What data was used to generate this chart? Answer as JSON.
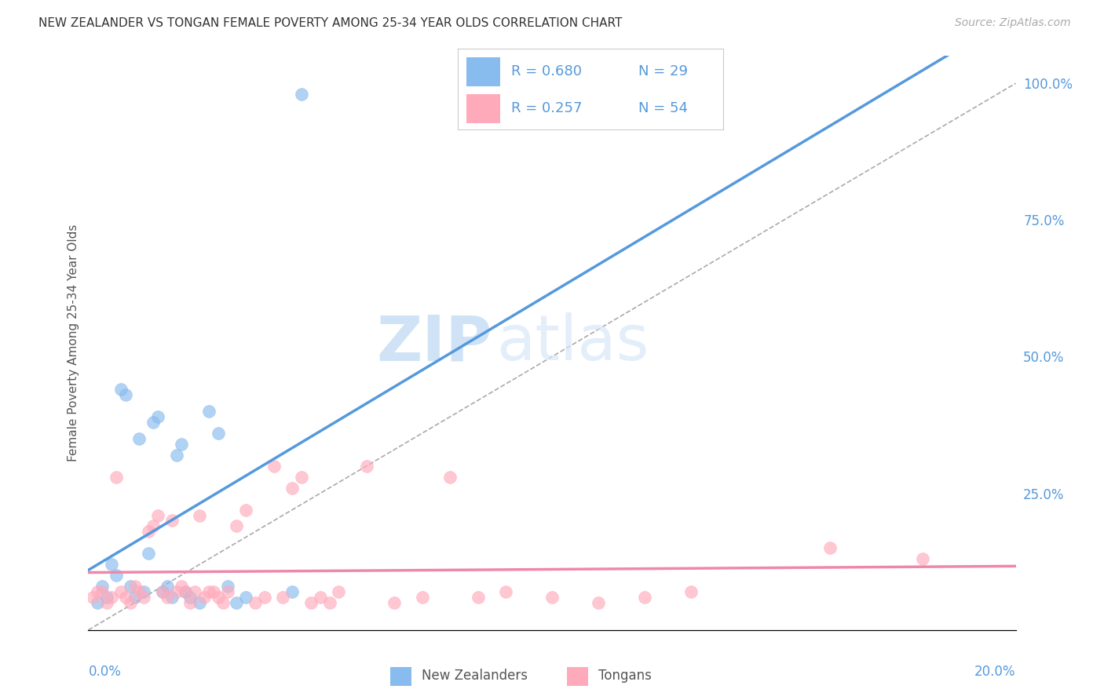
{
  "title": "NEW ZEALANDER VS TONGAN FEMALE POVERTY AMONG 25-34 YEAR OLDS CORRELATION CHART",
  "source": "Source: ZipAtlas.com",
  "ylabel": "Female Poverty Among 25-34 Year Olds",
  "watermark_zip": "ZIP",
  "watermark_atlas": "atlas",
  "nz_R": "R = 0.680",
  "nz_N": "N = 29",
  "tg_R": "R = 0.257",
  "tg_N": "N = 54",
  "nz_color": "#88bbee",
  "tg_color": "#ffaabb",
  "nz_line_color": "#5599dd",
  "tg_line_color": "#ee88aa",
  "nz_scatter_x": [
    0.002,
    0.003,
    0.004,
    0.005,
    0.006,
    0.007,
    0.008,
    0.009,
    0.01,
    0.011,
    0.012,
    0.013,
    0.014,
    0.015,
    0.016,
    0.017,
    0.018,
    0.019,
    0.02,
    0.021,
    0.022,
    0.024,
    0.026,
    0.028,
    0.03,
    0.032,
    0.034,
    0.044,
    0.046
  ],
  "nz_scatter_y": [
    0.05,
    0.08,
    0.06,
    0.12,
    0.1,
    0.44,
    0.43,
    0.08,
    0.06,
    0.35,
    0.07,
    0.14,
    0.38,
    0.39,
    0.07,
    0.08,
    0.06,
    0.32,
    0.34,
    0.07,
    0.06,
    0.05,
    0.4,
    0.36,
    0.08,
    0.05,
    0.06,
    0.07,
    0.98
  ],
  "tg_scatter_x": [
    0.001,
    0.002,
    0.003,
    0.004,
    0.005,
    0.006,
    0.007,
    0.008,
    0.009,
    0.01,
    0.011,
    0.012,
    0.013,
    0.014,
    0.015,
    0.016,
    0.017,
    0.018,
    0.019,
    0.02,
    0.021,
    0.022,
    0.023,
    0.024,
    0.025,
    0.026,
    0.027,
    0.028,
    0.029,
    0.03,
    0.032,
    0.034,
    0.036,
    0.038,
    0.04,
    0.042,
    0.044,
    0.046,
    0.048,
    0.05,
    0.052,
    0.054,
    0.06,
    0.066,
    0.072,
    0.078,
    0.084,
    0.09,
    0.1,
    0.11,
    0.12,
    0.13,
    0.16,
    0.18
  ],
  "tg_scatter_y": [
    0.06,
    0.07,
    0.07,
    0.05,
    0.06,
    0.28,
    0.07,
    0.06,
    0.05,
    0.08,
    0.07,
    0.06,
    0.18,
    0.19,
    0.21,
    0.07,
    0.06,
    0.2,
    0.07,
    0.08,
    0.07,
    0.05,
    0.07,
    0.21,
    0.06,
    0.07,
    0.07,
    0.06,
    0.05,
    0.07,
    0.19,
    0.22,
    0.05,
    0.06,
    0.3,
    0.06,
    0.26,
    0.28,
    0.05,
    0.06,
    0.05,
    0.07,
    0.3,
    0.05,
    0.06,
    0.28,
    0.06,
    0.07,
    0.06,
    0.05,
    0.06,
    0.07,
    0.15,
    0.13
  ],
  "xlim": [
    0.0,
    0.2
  ],
  "ylim": [
    0.0,
    1.05
  ],
  "right_yticks": [
    0.25,
    0.5,
    0.75,
    1.0
  ],
  "right_yticklabels": [
    "25.0%",
    "50.0%",
    "75.0%",
    "100.0%"
  ],
  "background_color": "#ffffff",
  "grid_color": "#cccccc"
}
